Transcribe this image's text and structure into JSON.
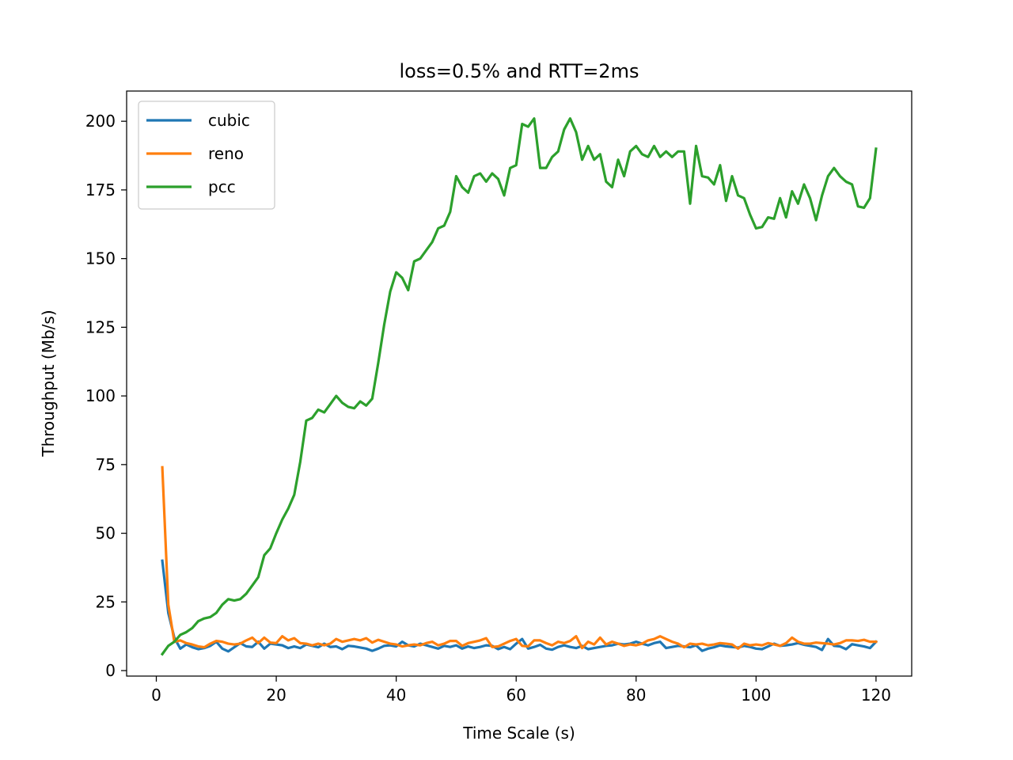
{
  "chart_data": {
    "type": "line",
    "title": "loss=0.5% and RTT=2ms",
    "xlabel": "Time Scale (s)",
    "ylabel": "Throughput (Mb/s)",
    "xlim": [
      -4.95,
      125.95
    ],
    "ylim": [
      -2,
      211
    ],
    "xticks": [
      0,
      20,
      40,
      60,
      80,
      100,
      120
    ],
    "yticks": [
      0,
      25,
      50,
      75,
      100,
      125,
      150,
      175,
      200
    ],
    "legend_position": "top-left",
    "grid": false,
    "series": [
      {
        "name": "cubic",
        "color": "#1f77b4",
        "x": [
          1,
          2,
          3,
          4,
          5,
          6,
          7,
          8,
          9,
          10,
          11,
          12,
          13,
          14,
          15,
          16,
          17,
          18,
          19,
          20,
          21,
          22,
          23,
          24,
          25,
          26,
          27,
          28,
          29,
          30,
          31,
          32,
          33,
          34,
          35,
          36,
          37,
          38,
          39,
          40,
          41,
          42,
          43,
          44,
          45,
          46,
          47,
          48,
          49,
          50,
          51,
          52,
          53,
          54,
          55,
          56,
          57,
          58,
          59,
          60,
          61,
          62,
          63,
          64,
          65,
          66,
          67,
          68,
          69,
          70,
          71,
          72,
          73,
          74,
          75,
          76,
          77,
          78,
          79,
          80,
          81,
          82,
          83,
          84,
          85,
          86,
          87,
          88,
          89,
          90,
          91,
          92,
          93,
          94,
          95,
          96,
          97,
          98,
          99,
          100,
          101,
          102,
          103,
          104,
          105,
          106,
          107,
          108,
          109,
          110,
          111,
          112,
          113,
          114,
          115,
          116,
          117,
          118,
          119,
          120
        ],
        "y": [
          40,
          21,
          12,
          8,
          9.5,
          8.5,
          7.8,
          8.2,
          9,
          10.5,
          8,
          7,
          8.5,
          10,
          8.8,
          8.6,
          10.5,
          8,
          9.8,
          9.5,
          9.2,
          8.2,
          8.8,
          8.2,
          9.5,
          9,
          8.5,
          9.8,
          8.6,
          8.8,
          7.8,
          9,
          8.8,
          8.4,
          8,
          7.2,
          8,
          9,
          9.2,
          8.8,
          10.5,
          9.2,
          8.8,
          9.8,
          9.2,
          8.6,
          8,
          9,
          8.6,
          9.2,
          8,
          8.8,
          8.2,
          8.6,
          9.2,
          9,
          7.8,
          8.6,
          7.8,
          9.8,
          11.5,
          8,
          8.6,
          9.4,
          8,
          7.6,
          8.6,
          9.2,
          8.6,
          8.2,
          9,
          7.8,
          8.2,
          8.6,
          9,
          9.2,
          9.8,
          9.5,
          9.8,
          10.5,
          9.8,
          9.2,
          10,
          10.5,
          8.2,
          8.6,
          9,
          8.8,
          8.5,
          9.2,
          7.2,
          8,
          8.5,
          9.2,
          8.8,
          8.6,
          8.4,
          9,
          8.6,
          8,
          7.8,
          8.8,
          9.8,
          9,
          9.2,
          9.5,
          10,
          9.4,
          9,
          8.6,
          7.5,
          11.5,
          9,
          8.8,
          7.8,
          9.6,
          9.2,
          8.8,
          8.2,
          10.5
        ]
      },
      {
        "name": "reno",
        "color": "#ff7f0e",
        "x": [
          1,
          2,
          3,
          4,
          5,
          6,
          7,
          8,
          9,
          10,
          11,
          12,
          13,
          14,
          15,
          16,
          17,
          18,
          19,
          20,
          21,
          22,
          23,
          24,
          25,
          26,
          27,
          28,
          29,
          30,
          31,
          32,
          33,
          34,
          35,
          36,
          37,
          38,
          39,
          40,
          41,
          42,
          43,
          44,
          45,
          46,
          47,
          48,
          49,
          50,
          51,
          52,
          53,
          54,
          55,
          56,
          57,
          58,
          59,
          60,
          61,
          62,
          63,
          64,
          65,
          66,
          67,
          68,
          69,
          70,
          71,
          72,
          73,
          74,
          75,
          76,
          77,
          78,
          79,
          80,
          81,
          82,
          83,
          84,
          85,
          86,
          87,
          88,
          89,
          90,
          91,
          92,
          93,
          94,
          95,
          96,
          97,
          98,
          99,
          100,
          101,
          102,
          103,
          104,
          105,
          106,
          107,
          108,
          109,
          110,
          111,
          112,
          113,
          114,
          115,
          116,
          117,
          118,
          119,
          120
        ],
        "y": [
          74,
          24,
          10.5,
          11,
          10,
          9.5,
          8.8,
          8.5,
          9.8,
          10.8,
          10.5,
          9.8,
          9.5,
          9.8,
          11,
          12,
          10,
          12,
          10.2,
          10,
          12.5,
          11,
          11.8,
          10,
          9.8,
          9.2,
          9.8,
          9.2,
          9.8,
          11.5,
          10.5,
          11,
          11.5,
          11,
          11.8,
          10.2,
          11.2,
          10.5,
          9.8,
          9.5,
          8.8,
          9.2,
          9.5,
          9.2,
          10,
          10.5,
          9.2,
          9.8,
          10.8,
          10.8,
          9,
          10,
          10.5,
          11,
          11.8,
          8.6,
          8.8,
          9.8,
          10.8,
          11.5,
          9,
          8.8,
          11,
          11,
          10,
          9.2,
          10.5,
          10,
          10.8,
          12.5,
          8.2,
          10.5,
          9.5,
          12,
          9.5,
          10.5,
          9.8,
          9,
          9.5,
          9.2,
          9.8,
          11,
          11.5,
          12.5,
          11.5,
          10.5,
          9.8,
          8.5,
          9.8,
          9.5,
          9.8,
          9.2,
          9.5,
          10,
          9.8,
          9.5,
          8,
          9.8,
          9.2,
          9.5,
          9.2,
          10,
          9.5,
          9,
          10,
          12,
          10.5,
          9.8,
          9.8,
          10.2,
          10,
          9.8,
          9.5,
          10,
          11,
          11,
          10.8,
          11.2,
          10.5,
          10.5
        ]
      },
      {
        "name": "pcc",
        "color": "#2ca02c",
        "x": [
          1,
          2,
          3,
          4,
          5,
          6,
          7,
          8,
          9,
          10,
          11,
          12,
          13,
          14,
          15,
          16,
          17,
          18,
          19,
          20,
          21,
          22,
          23,
          24,
          25,
          26,
          27,
          28,
          29,
          30,
          31,
          32,
          33,
          34,
          35,
          36,
          37,
          38,
          39,
          40,
          41,
          42,
          43,
          44,
          45,
          46,
          47,
          48,
          49,
          50,
          51,
          52,
          53,
          54,
          55,
          56,
          57,
          58,
          59,
          60,
          61,
          62,
          63,
          64,
          65,
          66,
          67,
          68,
          69,
          70,
          71,
          72,
          73,
          74,
          75,
          76,
          77,
          78,
          79,
          80,
          81,
          82,
          83,
          84,
          85,
          86,
          87,
          88,
          89,
          90,
          91,
          92,
          93,
          94,
          95,
          96,
          97,
          98,
          99,
          100,
          101,
          102,
          103,
          104,
          105,
          106,
          107,
          108,
          109,
          110,
          111,
          112,
          113,
          114,
          115,
          116,
          117,
          118,
          119,
          120
        ],
        "y": [
          6,
          9,
          10.5,
          13,
          14,
          15.5,
          18,
          19,
          19.5,
          21,
          24,
          26,
          25.5,
          26,
          28,
          31,
          34,
          42,
          44.5,
          50,
          55,
          59,
          64,
          76,
          91,
          92,
          95,
          94,
          97,
          100,
          97.5,
          96,
          95.5,
          98,
          96.5,
          99,
          112,
          126,
          138,
          145,
          143,
          138.5,
          149,
          150,
          153,
          156,
          161,
          162,
          167,
          180,
          176,
          174,
          180,
          181,
          178,
          181,
          179,
          173,
          183,
          184,
          199,
          198,
          201,
          183,
          183,
          187,
          189,
          197,
          201,
          196,
          186,
          191,
          186,
          188,
          178,
          176,
          186,
          180,
          189,
          191,
          188,
          187,
          191,
          187,
          189,
          187,
          189,
          189,
          170,
          191,
          180,
          179.5,
          177,
          184,
          171,
          180,
          173,
          172,
          166,
          161,
          161.5,
          165,
          164.5,
          172,
          165,
          174.5,
          170,
          177,
          172,
          164,
          173,
          180,
          183,
          180,
          178,
          177,
          169,
          168.5,
          172,
          190
        ]
      }
    ]
  }
}
